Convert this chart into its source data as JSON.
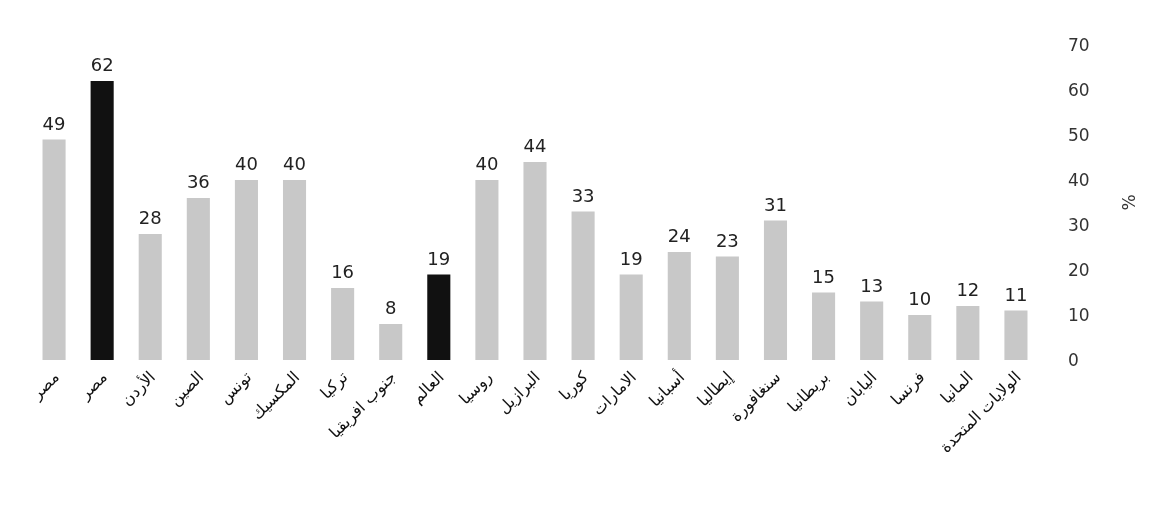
{
  "chart_data": {
    "type": "bar",
    "ylabel": "%",
    "categories": [
      "مصر",
      "مصر",
      "الأردن",
      "الصين",
      "تونس",
      "المكسيك",
      "تركيا",
      "جنوب افريقيا",
      "العالم",
      "روسيا",
      "البرازيل",
      "كوريا",
      "الامارات",
      "أسبانيا",
      "إيطاليا",
      "سنغافورة",
      "بريطانيا",
      "اليابان",
      "فرنسا",
      "المانيا",
      "الولايات المتحدة"
    ],
    "values": [
      49,
      62,
      28,
      36,
      40,
      40,
      16,
      8,
      19,
      40,
      44,
      33,
      19,
      24,
      23,
      31,
      15,
      13,
      10,
      12,
      11
    ],
    "colors": [
      "#c8c8c8",
      "#111111",
      "#c8c8c8",
      "#c8c8c8",
      "#c8c8c8",
      "#c8c8c8",
      "#c8c8c8",
      "#c8c8c8",
      "#111111",
      "#c8c8c8",
      "#c8c8c8",
      "#c8c8c8",
      "#c8c8c8",
      "#c8c8c8",
      "#c8c8c8",
      "#c8c8c8",
      "#c8c8c8",
      "#c8c8c8",
      "#c8c8c8",
      "#c8c8c8",
      "#c8c8c8"
    ],
    "ylim": [
      0,
      70
    ],
    "yticks": [
      0,
      10,
      20,
      30,
      40,
      50,
      60,
      70
    ],
    "data_labels": true
  }
}
